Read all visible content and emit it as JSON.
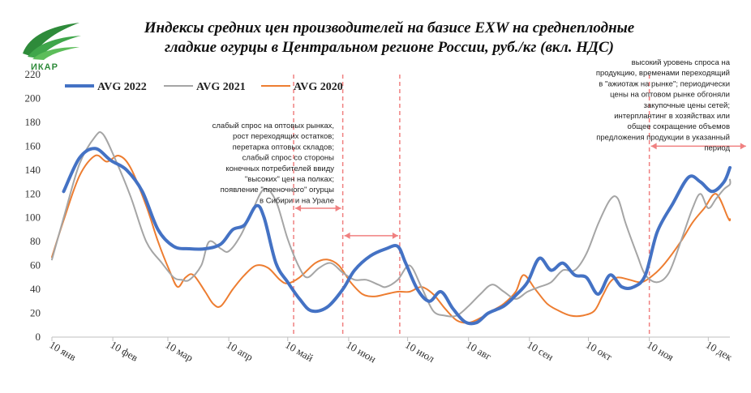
{
  "logo": {
    "text": "ИКАР"
  },
  "chart_data": {
    "type": "line",
    "title": "Индексы средних цен производителей на базисе EXW на среднеплодные гладкие огурцы в Центральном регионе России, руб./кг (вкл. НДС)",
    "title_lines": [
      "Индексы средних цен производителей на базисе EXW на среднеплодные",
      "гладкие огурцы в Центральном регионе России, руб./кг (вкл. НДС)"
    ],
    "xlabel": "",
    "ylabel": "",
    "ylim": [
      0,
      220
    ],
    "yticks": [
      0,
      20,
      40,
      60,
      80,
      100,
      120,
      140,
      160,
      180,
      200,
      220
    ],
    "xlim": [
      0,
      345
    ],
    "x_unit": "day of year from 10 янв",
    "xticks": [
      {
        "x": 0,
        "label": "10 янв"
      },
      {
        "x": 31,
        "label": "10 фев"
      },
      {
        "x": 59,
        "label": "10 мар"
      },
      {
        "x": 90,
        "label": "10 апр"
      },
      {
        "x": 120,
        "label": "10 май"
      },
      {
        "x": 151,
        "label": "10 июн"
      },
      {
        "x": 181,
        "label": "10 июл"
      },
      {
        "x": 212,
        "label": "10 авг"
      },
      {
        "x": 243,
        "label": "10 сен"
      },
      {
        "x": 273,
        "label": "10 окт"
      },
      {
        "x": 304,
        "label": "10 ноя"
      },
      {
        "x": 334,
        "label": "10 дек"
      }
    ],
    "grid": false,
    "legend": "top-left",
    "series": [
      {
        "name": "AVG 2022",
        "color": "#4472c4",
        "width": 4,
        "points": [
          [
            6,
            122
          ],
          [
            14,
            150
          ],
          [
            22,
            158
          ],
          [
            30,
            148
          ],
          [
            38,
            140
          ],
          [
            46,
            122
          ],
          [
            54,
            90
          ],
          [
            62,
            76
          ],
          [
            70,
            74
          ],
          [
            78,
            74
          ],
          [
            86,
            78
          ],
          [
            92,
            90
          ],
          [
            98,
            94
          ],
          [
            104,
            110
          ],
          [
            108,
            100
          ],
          [
            114,
            62
          ],
          [
            120,
            46
          ],
          [
            126,
            32
          ],
          [
            132,
            22
          ],
          [
            140,
            25
          ],
          [
            148,
            40
          ],
          [
            154,
            56
          ],
          [
            162,
            68
          ],
          [
            170,
            74
          ],
          [
            176,
            76
          ],
          [
            180,
            62
          ],
          [
            186,
            40
          ],
          [
            192,
            30
          ],
          [
            198,
            38
          ],
          [
            204,
            24
          ],
          [
            210,
            13
          ],
          [
            216,
            12
          ],
          [
            222,
            20
          ],
          [
            230,
            26
          ],
          [
            236,
            35
          ],
          [
            242,
            46
          ],
          [
            248,
            66
          ],
          [
            254,
            56
          ],
          [
            260,
            62
          ],
          [
            266,
            52
          ],
          [
            272,
            50
          ],
          [
            278,
            36
          ],
          [
            284,
            52
          ],
          [
            290,
            42
          ],
          [
            296,
            42
          ],
          [
            302,
            52
          ],
          [
            308,
            88
          ],
          [
            316,
            112
          ],
          [
            324,
            134
          ],
          [
            330,
            130
          ],
          [
            336,
            122
          ],
          [
            342,
            130
          ],
          [
            346,
            142
          ]
        ]
      },
      {
        "name": "AVG 2021",
        "color": "#a5a5a5",
        "width": 2,
        "points": [
          [
            0,
            65
          ],
          [
            6,
            100
          ],
          [
            14,
            145
          ],
          [
            22,
            168
          ],
          [
            26,
            170
          ],
          [
            32,
            150
          ],
          [
            40,
            118
          ],
          [
            48,
            80
          ],
          [
            56,
            62
          ],
          [
            62,
            50
          ],
          [
            66,
            48
          ],
          [
            70,
            48
          ],
          [
            76,
            60
          ],
          [
            80,
            80
          ],
          [
            86,
            74
          ],
          [
            90,
            72
          ],
          [
            96,
            85
          ],
          [
            102,
            106
          ],
          [
            108,
            124
          ],
          [
            114,
            114
          ],
          [
            120,
            82
          ],
          [
            126,
            58
          ],
          [
            130,
            50
          ],
          [
            136,
            58
          ],
          [
            142,
            62
          ],
          [
            148,
            54
          ],
          [
            154,
            48
          ],
          [
            160,
            48
          ],
          [
            166,
            44
          ],
          [
            170,
            42
          ],
          [
            176,
            48
          ],
          [
            182,
            60
          ],
          [
            188,
            42
          ],
          [
            194,
            22
          ],
          [
            200,
            18
          ],
          [
            206,
            18
          ],
          [
            212,
            26
          ],
          [
            218,
            36
          ],
          [
            224,
            44
          ],
          [
            230,
            38
          ],
          [
            236,
            32
          ],
          [
            242,
            38
          ],
          [
            248,
            42
          ],
          [
            254,
            46
          ],
          [
            260,
            56
          ],
          [
            266,
            56
          ],
          [
            272,
            70
          ],
          [
            278,
            95
          ],
          [
            284,
            115
          ],
          [
            288,
            116
          ],
          [
            292,
            95
          ],
          [
            298,
            68
          ],
          [
            302,
            52
          ],
          [
            308,
            46
          ],
          [
            314,
            54
          ],
          [
            320,
            80
          ],
          [
            326,
            108
          ],
          [
            330,
            120
          ],
          [
            334,
            108
          ],
          [
            338,
            116
          ],
          [
            342,
            124
          ],
          [
            348,
            128
          ],
          [
            354,
            132
          ]
        ]
      },
      {
        "name": "AVG 2020",
        "color": "#ed7d31",
        "width": 2,
        "points": [
          [
            0,
            67
          ],
          [
            6,
            98
          ],
          [
            14,
            135
          ],
          [
            22,
            152
          ],
          [
            28,
            147
          ],
          [
            34,
            152
          ],
          [
            40,
            142
          ],
          [
            48,
            110
          ],
          [
            54,
            80
          ],
          [
            60,
            55
          ],
          [
            64,
            42
          ],
          [
            68,
            50
          ],
          [
            72,
            52
          ],
          [
            78,
            38
          ],
          [
            82,
            28
          ],
          [
            86,
            26
          ],
          [
            92,
            40
          ],
          [
            98,
            52
          ],
          [
            104,
            60
          ],
          [
            110,
            58
          ],
          [
            116,
            48
          ],
          [
            120,
            45
          ],
          [
            126,
            50
          ],
          [
            134,
            62
          ],
          [
            140,
            65
          ],
          [
            146,
            60
          ],
          [
            152,
            46
          ],
          [
            158,
            36
          ],
          [
            164,
            34
          ],
          [
            170,
            36
          ],
          [
            176,
            38
          ],
          [
            182,
            38
          ],
          [
            188,
            42
          ],
          [
            194,
            36
          ],
          [
            200,
            24
          ],
          [
            206,
            14
          ],
          [
            212,
            12
          ],
          [
            218,
            16
          ],
          [
            224,
            22
          ],
          [
            230,
            28
          ],
          [
            236,
            38
          ],
          [
            240,
            52
          ],
          [
            246,
            40
          ],
          [
            252,
            28
          ],
          [
            258,
            22
          ],
          [
            264,
            18
          ],
          [
            270,
            18
          ],
          [
            276,
            22
          ],
          [
            280,
            34
          ],
          [
            284,
            46
          ],
          [
            288,
            50
          ],
          [
            294,
            48
          ],
          [
            300,
            46
          ],
          [
            306,
            52
          ],
          [
            312,
            62
          ],
          [
            320,
            80
          ],
          [
            326,
            96
          ],
          [
            332,
            108
          ],
          [
            338,
            120
          ],
          [
            344,
            100
          ],
          [
            350,
            98
          ],
          [
            354,
            99
          ]
        ]
      }
    ],
    "period_markers": [
      {
        "x": 123,
        "color": "#f08080"
      },
      {
        "x": 148,
        "color": "#f08080"
      },
      {
        "x": 177,
        "color": "#f08080"
      },
      {
        "x": 304,
        "color": "#f08080"
      }
    ],
    "period_arrows": [
      {
        "from": 123,
        "to": 148,
        "y": 108
      },
      {
        "from": 148,
        "to": 177,
        "y": 85
      },
      {
        "from": 304,
        "to": 354,
        "y": 160
      }
    ],
    "annotations": [
      {
        "id": "spring",
        "lines": [
          "слабый спрос на оптовых рынках,",
          "рост переходящих остатков;",
          "перетарка оптовых складов;",
          "слабый спрос со стороны",
          "конечных потребителей ввиду",
          "\"высоких\" цен на полках;",
          "появление \"пленочного\" огурцы",
          "в Сибири и на Урале"
        ]
      },
      {
        "id": "autumn",
        "lines": [
          "высокий уровень спроса на",
          "продукцию, временами переходящий",
          "в \"ажиотаж на рынке\";  периодически",
          "цены на оптовом рынке обгоняли",
          "закупочные цены сетей;",
          "интерплантинг в хозяйствах или",
          "общее сокращение объемов",
          "предложения продукции в указанный",
          "период"
        ]
      }
    ]
  }
}
